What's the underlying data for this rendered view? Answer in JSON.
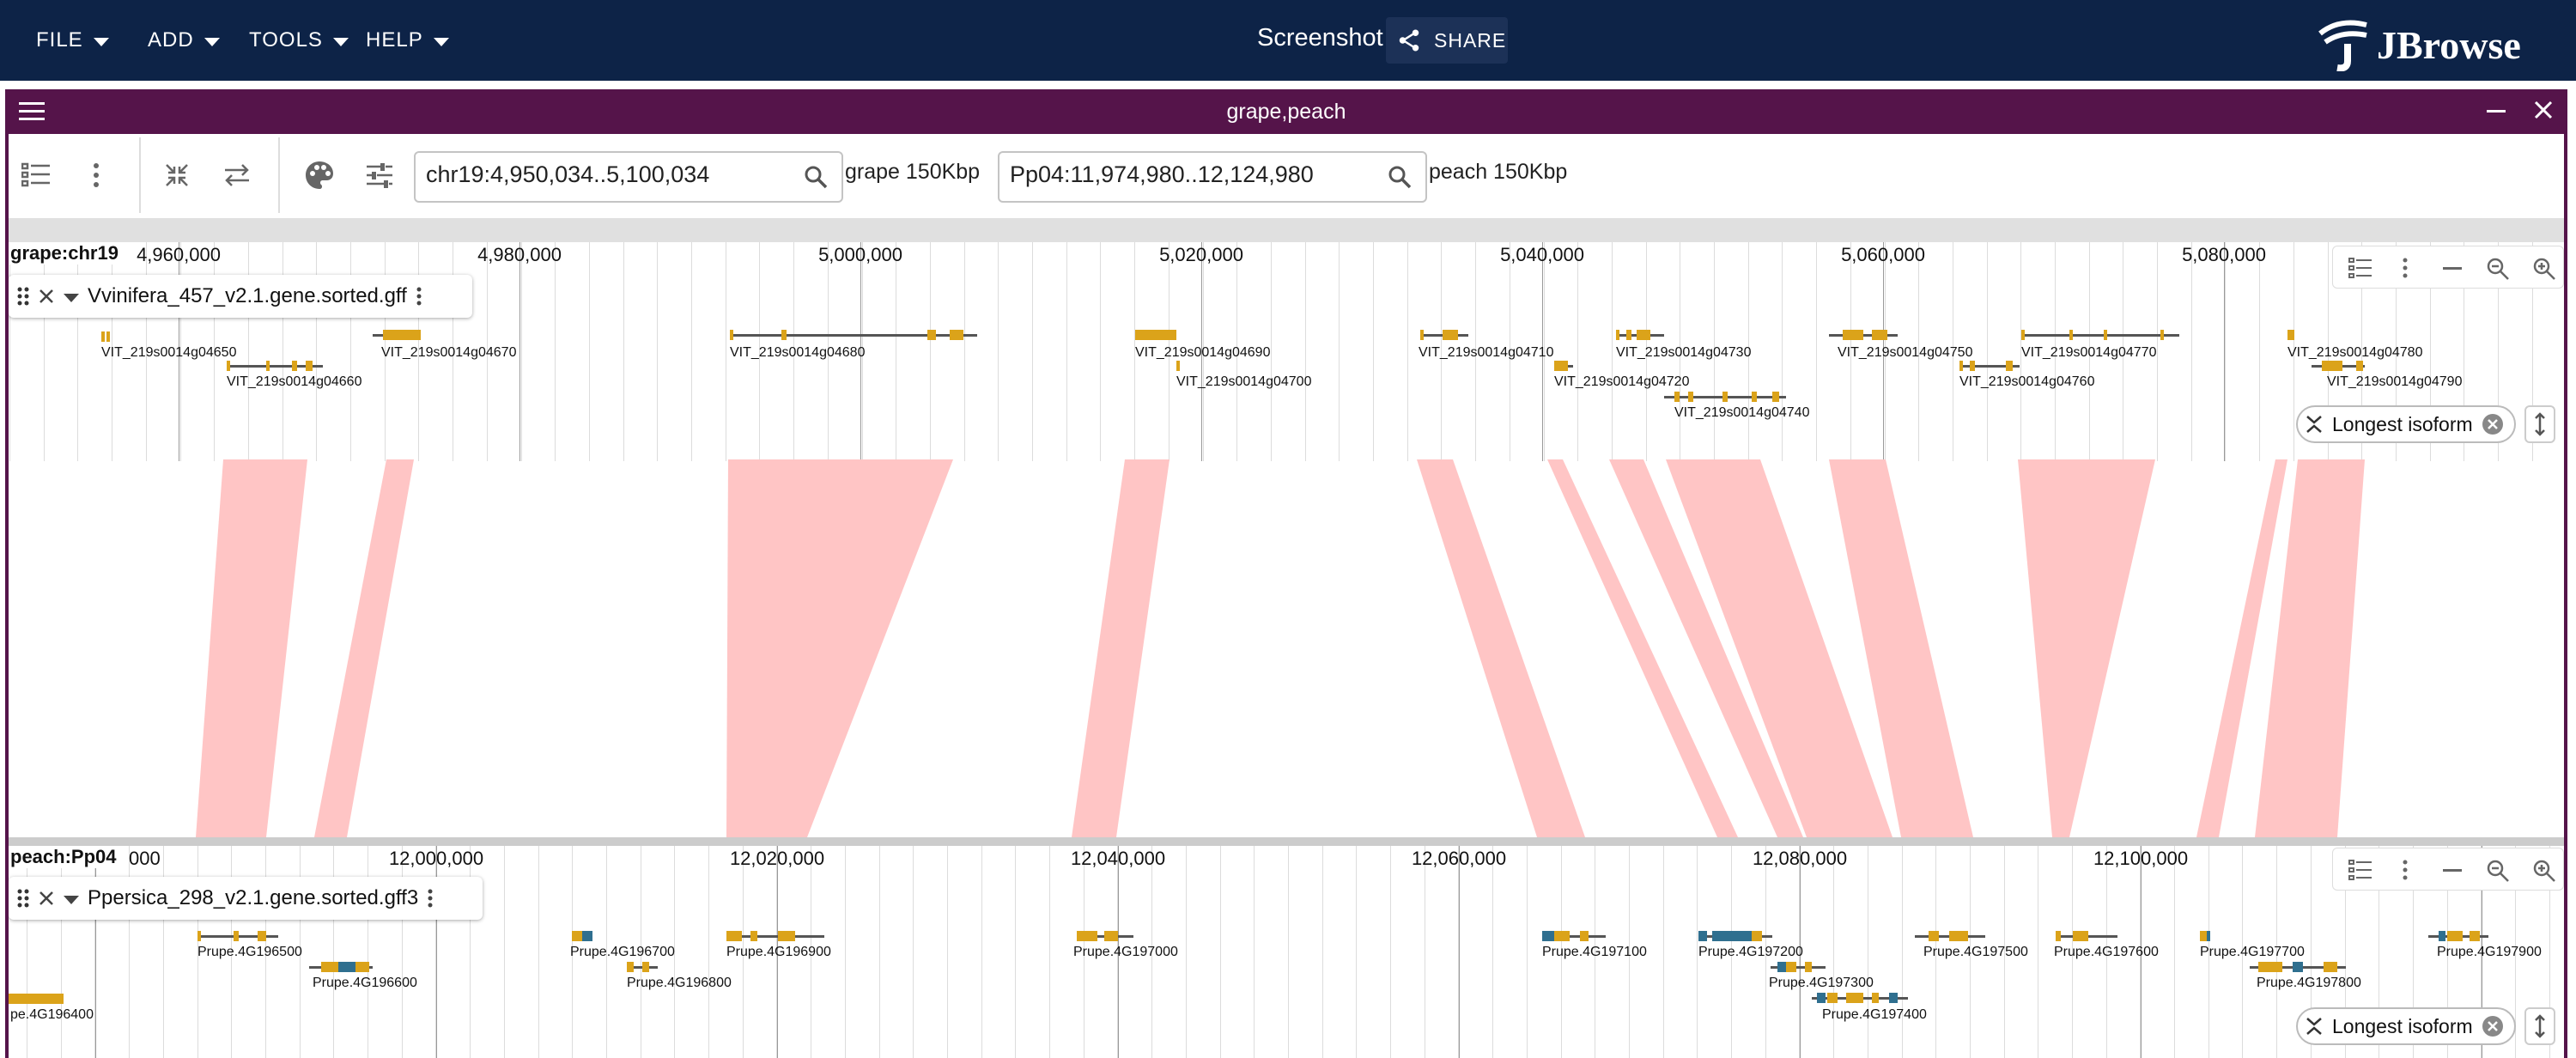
{
  "appbar": {
    "menus": [
      "FILE",
      "ADD",
      "TOOLS",
      "HELP"
    ],
    "session_name": "Screenshot",
    "share_label": "SHARE",
    "logo_text": "JBrowse"
  },
  "view": {
    "title": "grape,peach",
    "locations": [
      {
        "value": "chr19:4,950,034..5,100,034",
        "assembly_label": "grape 150Kbp"
      },
      {
        "value": "Pp04:11,974,980..12,124,980",
        "assembly_label": "peach 150Kbp"
      }
    ]
  },
  "top_panel": {
    "assembly_chr": "grape:chr19",
    "ticks": [
      "4,960,000",
      "4,980,000",
      "5,000,000",
      "5,020,000",
      "5,040,000",
      "5,060,000",
      "5,080,000"
    ],
    "track_name": "Vvinifera_457_v2.1.gene.sorted.gff",
    "genes": [
      "VIT_219s0014g04650",
      "VIT_219s0014g04660",
      "VIT_219s0014g04670",
      "VIT_219s0014g04680",
      "VIT_219s0014g04690",
      "VIT_219s0014g04700",
      "VIT_219s0014g04710",
      "VIT_219s0014g04720",
      "VIT_219s0014g04730",
      "VIT_219s0014g04740",
      "VIT_219s0014g04750",
      "VIT_219s0014g04760",
      "VIT_219s0014g04770",
      "VIT_219s0014g04780",
      "VIT_219s0014g04790"
    ],
    "isoform_label": "Longest isoform"
  },
  "bottom_panel": {
    "assembly_chr": "peach:Pp04",
    "first_tick_fragment": "000",
    "ticks": [
      "12,000,000",
      "12,020,000",
      "12,040,000",
      "12,060,000",
      "12,080,000",
      "12,100,000"
    ],
    "track_name": "Ppersica_298_v2.1.gene.sorted.gff3",
    "genes": [
      "pe.4G196400",
      "Prupe.4G196500",
      "Prupe.4G196600",
      "Prupe.4G196700",
      "Prupe.4G196800",
      "Prupe.4G196900",
      "Prupe.4G197000",
      "Prupe.4G197100",
      "Prupe.4G197200",
      "Prupe.4G197300",
      "Prupe.4G197400",
      "Prupe.4G197500",
      "Prupe.4G197600",
      "Prupe.4G197700",
      "Prupe.4G197800",
      "Prupe.4G197900"
    ],
    "isoform_label": "Longest isoform"
  },
  "colors": {
    "appbar": "#0d2347",
    "view_header": "#55144a",
    "synteny": "#ffc0c0",
    "exon": "#dba31a",
    "utr": "#2f6f8f"
  }
}
